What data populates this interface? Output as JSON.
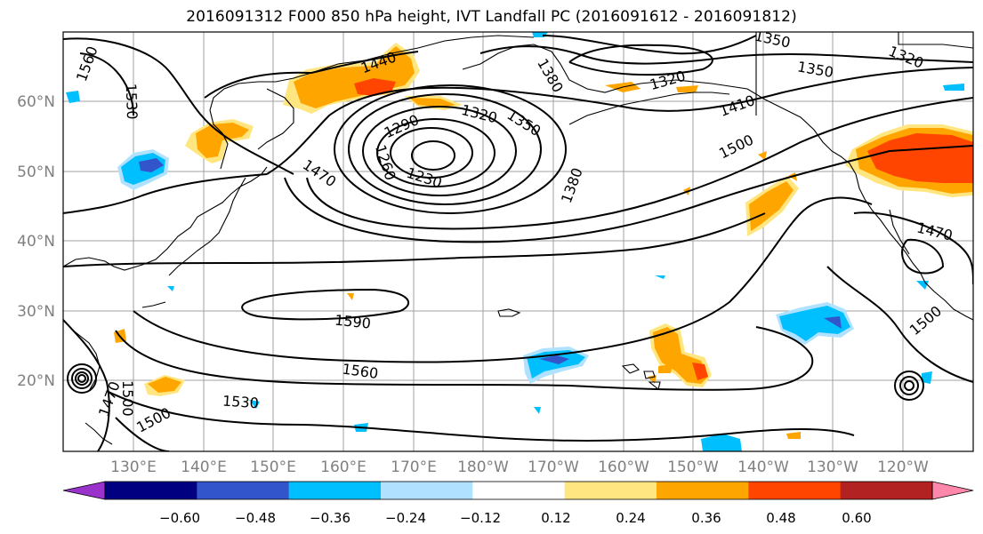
{
  "title": "2016091312 F000 850 hPa height, IVT Landfall PC (2016091612 - 2016091812)",
  "map": {
    "lat_labels": [
      "60°N",
      "50°N",
      "40°N",
      "30°N",
      "20°N"
    ],
    "lon_labels": [
      "130°E",
      "140°E",
      "150°E",
      "160°E",
      "170°E",
      "180°W",
      "170°W",
      "160°W",
      "150°W",
      "140°W",
      "130°W",
      "120°W"
    ],
    "contour_labels": [
      "1560",
      "1530",
      "1440",
      "1380",
      "1350",
      "1320",
      "1350",
      "1320",
      "1290",
      "1320",
      "1350",
      "1410",
      "1500",
      "1260",
      "1230",
      "1380",
      "1470",
      "1470",
      "1500",
      "1590",
      "1560",
      "1530",
      "1500",
      "1470",
      "1500"
    ],
    "label_color": "#808080",
    "grid_color": "#a0a0a0"
  },
  "colorbar": {
    "colors": [
      "#9933cc",
      "#000080",
      "#3355cc",
      "#00bfff",
      "#b0e2ff",
      "#ffffff",
      "#ffe680",
      "#ffa500",
      "#ff4500",
      "#b22222",
      "#ff88aa"
    ],
    "ticks": [
      "−0.60",
      "−0.48",
      "−0.36",
      "−0.24",
      "−0.12",
      "0.12",
      "0.24",
      "0.36",
      "0.48",
      "0.60"
    ]
  }
}
